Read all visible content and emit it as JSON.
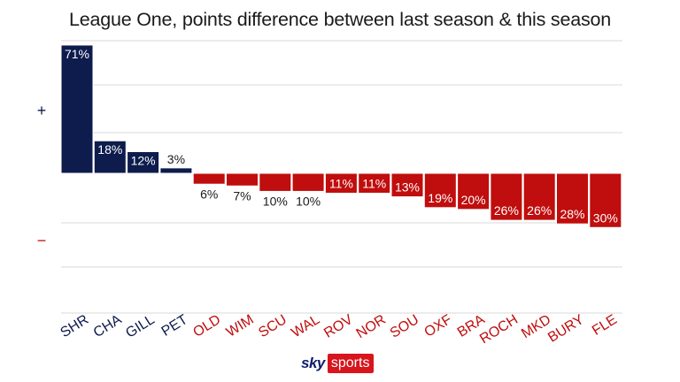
{
  "chart_data": {
    "type": "bar",
    "title": "League One, points difference between last season & this season",
    "xlabel": "",
    "ylabel": "",
    "positive_marker": "+",
    "negative_marker": "−",
    "ylim": [
      -80,
      80
    ],
    "unit": "%",
    "grid": true,
    "categories": [
      "SHR",
      "CHA",
      "GILL",
      "PET",
      "OLD",
      "WIM",
      "SCU",
      "WAL",
      "ROV",
      "NOR",
      "SOU",
      "OXF",
      "BRA",
      "ROCH",
      "MKD",
      "BURY",
      "FLE"
    ],
    "values": [
      71,
      18,
      12,
      3,
      -6,
      -7,
      -10,
      -10,
      -11,
      -11,
      -13,
      -19,
      -20,
      -26,
      -26,
      -28,
      -30
    ],
    "colors": {
      "positive": "#0e1b4d",
      "negative": "#c00d0d",
      "grid": "#d9d9d9",
      "label_dark": "#1a1a1a",
      "label_light": "#ffffff"
    }
  },
  "branding": {
    "logo_left": "sky",
    "logo_right": "sports"
  }
}
